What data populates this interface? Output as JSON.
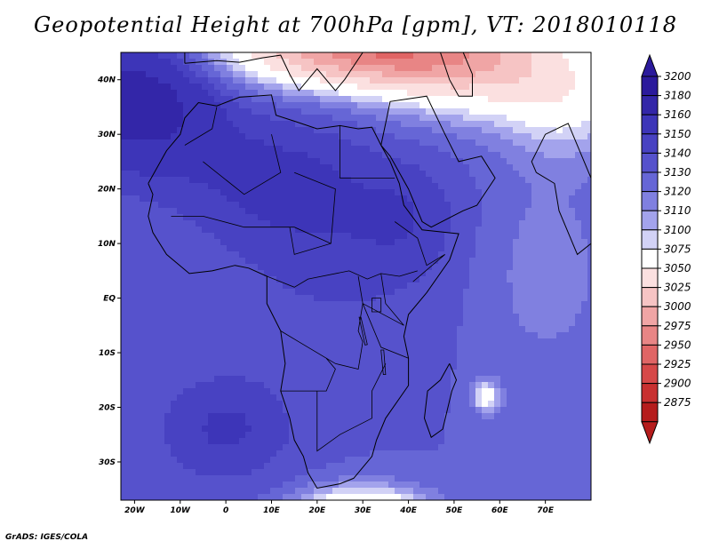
{
  "title": "Geopotential Height at 700hPa [gpm], VT: 2018010118",
  "credit": "GrADS: IGES/COLA",
  "map": {
    "lon_range": [
      -23,
      80
    ],
    "lat_range": [
      -37,
      45
    ],
    "lon_ticks": [
      {
        "value": -20,
        "label": "20W"
      },
      {
        "value": -10,
        "label": "10W"
      },
      {
        "value": 0,
        "label": "0"
      },
      {
        "value": 10,
        "label": "10E"
      },
      {
        "value": 20,
        "label": "20E"
      },
      {
        "value": 30,
        "label": "30E"
      },
      {
        "value": 40,
        "label": "40E"
      },
      {
        "value": 50,
        "label": "50E"
      },
      {
        "value": 60,
        "label": "60E"
      },
      {
        "value": 70,
        "label": "70E"
      }
    ],
    "lat_ticks": [
      {
        "value": 40,
        "label": "40N"
      },
      {
        "value": 30,
        "label": "30N"
      },
      {
        "value": 20,
        "label": "20N"
      },
      {
        "value": 10,
        "label": "10N"
      },
      {
        "value": 0,
        "label": "EQ"
      },
      {
        "value": -10,
        "label": "10S"
      },
      {
        "value": -20,
        "label": "20S"
      },
      {
        "value": -30,
        "label": "30S"
      }
    ]
  },
  "colorbar": {
    "levels": [
      {
        "label": "3200",
        "color": "#2b1a9c"
      },
      {
        "label": "3180",
        "color": "#3326a8"
      },
      {
        "label": "3160",
        "color": "#3d35b8"
      },
      {
        "label": "3150",
        "color": "#4842c2"
      },
      {
        "label": "3140",
        "color": "#5652cc"
      },
      {
        "label": "3130",
        "color": "#6666d6"
      },
      {
        "label": "3120",
        "color": "#8080e0"
      },
      {
        "label": "3110",
        "color": "#a3a3ec"
      },
      {
        "label": "3100",
        "color": "#d2d2f6"
      },
      {
        "label": "3075",
        "color": "#ffffff"
      },
      {
        "label": "3050",
        "color": "#fbe0e0"
      },
      {
        "label": "3025",
        "color": "#f6c4c4"
      },
      {
        "label": "3000",
        "color": "#f0a5a5"
      },
      {
        "label": "2975",
        "color": "#e88585"
      },
      {
        "label": "2950",
        "color": "#e06565"
      },
      {
        "label": "2925",
        "color": "#d64848"
      },
      {
        "label": "2900",
        "color": "#c83030"
      },
      {
        "label": "2875",
        "color": "#b51c1c"
      }
    ]
  },
  "field": {
    "base_value": 3140,
    "features": [
      {
        "name": "atlantic-high",
        "lon": -20,
        "lat": 36,
        "amp": 55,
        "rlon": 18,
        "rlat": 12
      },
      {
        "name": "sahara-high",
        "lon": 10,
        "lat": 22,
        "amp": 20,
        "rlon": 22,
        "rlat": 12
      },
      {
        "name": "west-africa",
        "lon": 25,
        "lat": 8,
        "amp": 12,
        "rlon": 25,
        "rlat": 18
      },
      {
        "name": "sa-atlantic-high",
        "lon": 0,
        "lat": -24,
        "amp": 22,
        "rlon": 15,
        "rlat": 10
      },
      {
        "name": "east-africa",
        "lon": 40,
        "lat": 15,
        "amp": 12,
        "rlon": 12,
        "rlat": 10
      },
      {
        "name": "mediterranean-trough",
        "lon": 30,
        "lat": 46,
        "amp": -150,
        "rlon": 28,
        "rlat": 7
      },
      {
        "name": "middle-east-trough",
        "lon": 55,
        "lat": 42,
        "amp": -70,
        "rlon": 22,
        "rlat": 9
      },
      {
        "name": "india-trough",
        "lon": 75,
        "lat": 36,
        "amp": -40,
        "rlon": 14,
        "rlat": 10
      },
      {
        "name": "southern-trough",
        "lon": 30,
        "lat": -40,
        "amp": -90,
        "rlon": 14,
        "rlat": 5
      },
      {
        "name": "madagascar-low",
        "lon": 57,
        "lat": -18,
        "amp": -50,
        "rlon": 3,
        "rlat": 3
      },
      {
        "name": "indian-ocean",
        "lon": 70,
        "lat": 5,
        "amp": -15,
        "rlon": 15,
        "rlat": 20
      }
    ]
  },
  "geography": {
    "regions": [
      {
        "name": "north-africa-outline",
        "points": [
          [
            -17,
            21
          ],
          [
            -13,
            27
          ],
          [
            -10,
            30
          ],
          [
            -9,
            33
          ],
          [
            -6,
            35.8
          ],
          [
            -2,
            35.2
          ],
          [
            3,
            36.8
          ],
          [
            10,
            37.2
          ],
          [
            11,
            33.5
          ],
          [
            15,
            32.4
          ],
          [
            20,
            31
          ],
          [
            25,
            31.6
          ],
          [
            29,
            31
          ],
          [
            32,
            31.3
          ],
          [
            34,
            28
          ],
          [
            36,
            25
          ],
          [
            38,
            21
          ],
          [
            39,
            17
          ],
          [
            43,
            12.5
          ],
          [
            51,
            11.8
          ],
          [
            49,
            7
          ],
          [
            44,
            1
          ],
          [
            40,
            -3
          ],
          [
            39,
            -7
          ],
          [
            40,
            -11
          ],
          [
            40,
            -16
          ],
          [
            35,
            -22
          ],
          [
            33,
            -26
          ],
          [
            32,
            -29
          ],
          [
            28,
            -33
          ],
          [
            25,
            -34
          ],
          [
            20,
            -34.8
          ],
          [
            18,
            -32
          ],
          [
            17,
            -29
          ],
          [
            15,
            -26
          ],
          [
            14,
            -22
          ],
          [
            12,
            -17
          ],
          [
            13,
            -12
          ],
          [
            12,
            -6
          ],
          [
            9,
            -1
          ],
          [
            9,
            4
          ],
          [
            5,
            5.5
          ],
          [
            2,
            6
          ],
          [
            -3,
            5
          ],
          [
            -8,
            4.5
          ],
          [
            -13,
            8
          ],
          [
            -16,
            12
          ],
          [
            -17,
            15
          ],
          [
            -16,
            19
          ],
          [
            -17,
            21
          ]
        ]
      },
      {
        "name": "arabia-outline",
        "points": [
          [
            34,
            28
          ],
          [
            35,
            32
          ],
          [
            36,
            36
          ],
          [
            44,
            37
          ],
          [
            48,
            30
          ],
          [
            51,
            25
          ],
          [
            56,
            26
          ],
          [
            59,
            22
          ],
          [
            55,
            17
          ],
          [
            52,
            16
          ],
          [
            45,
            13
          ],
          [
            43,
            14
          ],
          [
            40,
            20
          ],
          [
            36,
            26
          ],
          [
            34,
            28
          ]
        ]
      },
      {
        "name": "madagascar-outline",
        "points": [
          [
            49,
            -12
          ],
          [
            50.5,
            -15
          ],
          [
            49.5,
            -17
          ],
          [
            47.5,
            -24
          ],
          [
            45,
            -25.5
          ],
          [
            43.5,
            -22
          ],
          [
            44.2,
            -17
          ],
          [
            47,
            -15
          ],
          [
            49,
            -12
          ]
        ]
      },
      {
        "name": "india-outline",
        "points": [
          [
            68,
            23
          ],
          [
            72,
            21
          ],
          [
            73,
            16
          ],
          [
            77,
            8
          ],
          [
            80,
            10
          ],
          [
            80,
            16
          ],
          [
            80,
            22
          ],
          [
            75,
            32
          ],
          [
            70,
            30
          ],
          [
            67,
            25
          ],
          [
            68,
            23
          ]
        ]
      },
      {
        "name": "europe-outline",
        "points": [
          [
            -9,
            43
          ],
          [
            -2,
            43.5
          ],
          [
            3,
            43.2
          ],
          [
            8,
            44
          ],
          [
            12,
            44.5
          ],
          [
            14,
            41
          ],
          [
            16,
            38
          ],
          [
            18,
            40
          ],
          [
            20,
            42
          ],
          [
            24,
            38
          ],
          [
            26,
            40
          ],
          [
            30,
            45
          ],
          [
            -9,
            45
          ],
          [
            -9,
            43
          ]
        ]
      },
      {
        "name": "caspian-outline",
        "points": [
          [
            47,
            45
          ],
          [
            49,
            40
          ],
          [
            51,
            37
          ],
          [
            54,
            37
          ],
          [
            54,
            41
          ],
          [
            52,
            45
          ]
        ]
      }
    ],
    "borders": [
      {
        "name": "morocco-algeria",
        "points": [
          [
            -9,
            28
          ],
          [
            -3,
            31
          ],
          [
            -2,
            35
          ]
        ]
      },
      {
        "name": "algeria-south",
        "points": [
          [
            -5,
            25
          ],
          [
            4,
            19
          ],
          [
            12,
            23
          ],
          [
            10,
            30
          ]
        ]
      },
      {
        "name": "libya-egypt",
        "points": [
          [
            25,
            31.6
          ],
          [
            25,
            22
          ],
          [
            37,
            22
          ]
        ]
      },
      {
        "name": "chad-sudan",
        "points": [
          [
            15,
            23
          ],
          [
            24,
            20
          ],
          [
            23,
            10
          ],
          [
            15,
            8
          ],
          [
            14,
            13
          ]
        ]
      },
      {
        "name": "sahel-line",
        "points": [
          [
            -12,
            15
          ],
          [
            -5,
            15
          ],
          [
            4,
            13
          ],
          [
            15,
            13
          ],
          [
            23,
            10
          ]
        ]
      },
      {
        "name": "central-africa",
        "points": [
          [
            9,
            4
          ],
          [
            15,
            2
          ],
          [
            18,
            3.5
          ],
          [
            27,
            5
          ],
          [
            31,
            3.5
          ],
          [
            34,
            4.5
          ],
          [
            38,
            4
          ],
          [
            42,
            5
          ]
        ]
      },
      {
        "name": "congo-east",
        "points": [
          [
            29,
            4
          ],
          [
            30,
            -1
          ],
          [
            29,
            -6
          ],
          [
            30,
            -8
          ],
          [
            29,
            -13
          ],
          [
            24,
            -12
          ],
          [
            22,
            -11
          ]
        ]
      },
      {
        "name": "angola-zambia",
        "points": [
          [
            12,
            -6
          ],
          [
            16,
            -8
          ],
          [
            22,
            -11
          ],
          [
            24,
            -13
          ],
          [
            22,
            -17
          ],
          [
            12,
            -17
          ]
        ]
      },
      {
        "name": "southern-line",
        "points": [
          [
            20,
            -17
          ],
          [
            20,
            -24
          ],
          [
            20,
            -28
          ],
          [
            25,
            -25
          ],
          [
            32,
            -22
          ],
          [
            32,
            -17
          ],
          [
            35,
            -12
          ]
        ]
      },
      {
        "name": "east-africa",
        "points": [
          [
            34,
            4.5
          ],
          [
            35,
            -1
          ],
          [
            39,
            -5
          ],
          [
            30,
            -1
          ],
          [
            34,
            -9
          ],
          [
            40,
            -11
          ]
        ]
      },
      {
        "name": "horn",
        "points": [
          [
            37,
            14
          ],
          [
            42,
            11
          ],
          [
            44,
            6
          ],
          [
            48,
            8
          ],
          [
            41,
            3
          ]
        ]
      }
    ],
    "lakes": [
      {
        "name": "lake-victoria",
        "points": [
          [
            32,
            0
          ],
          [
            34,
            0
          ],
          [
            34,
            -2.5
          ],
          [
            32,
            -2.5
          ]
        ]
      },
      {
        "name": "lake-tanganyika",
        "points": [
          [
            29.2,
            -3.5
          ],
          [
            29.6,
            -3.5
          ],
          [
            31,
            -8.5
          ],
          [
            30.5,
            -8.6
          ]
        ]
      },
      {
        "name": "lake-malawi",
        "points": [
          [
            34,
            -9.5
          ],
          [
            34.6,
            -9.5
          ],
          [
            35,
            -14
          ],
          [
            34.5,
            -14
          ]
        ]
      }
    ]
  }
}
